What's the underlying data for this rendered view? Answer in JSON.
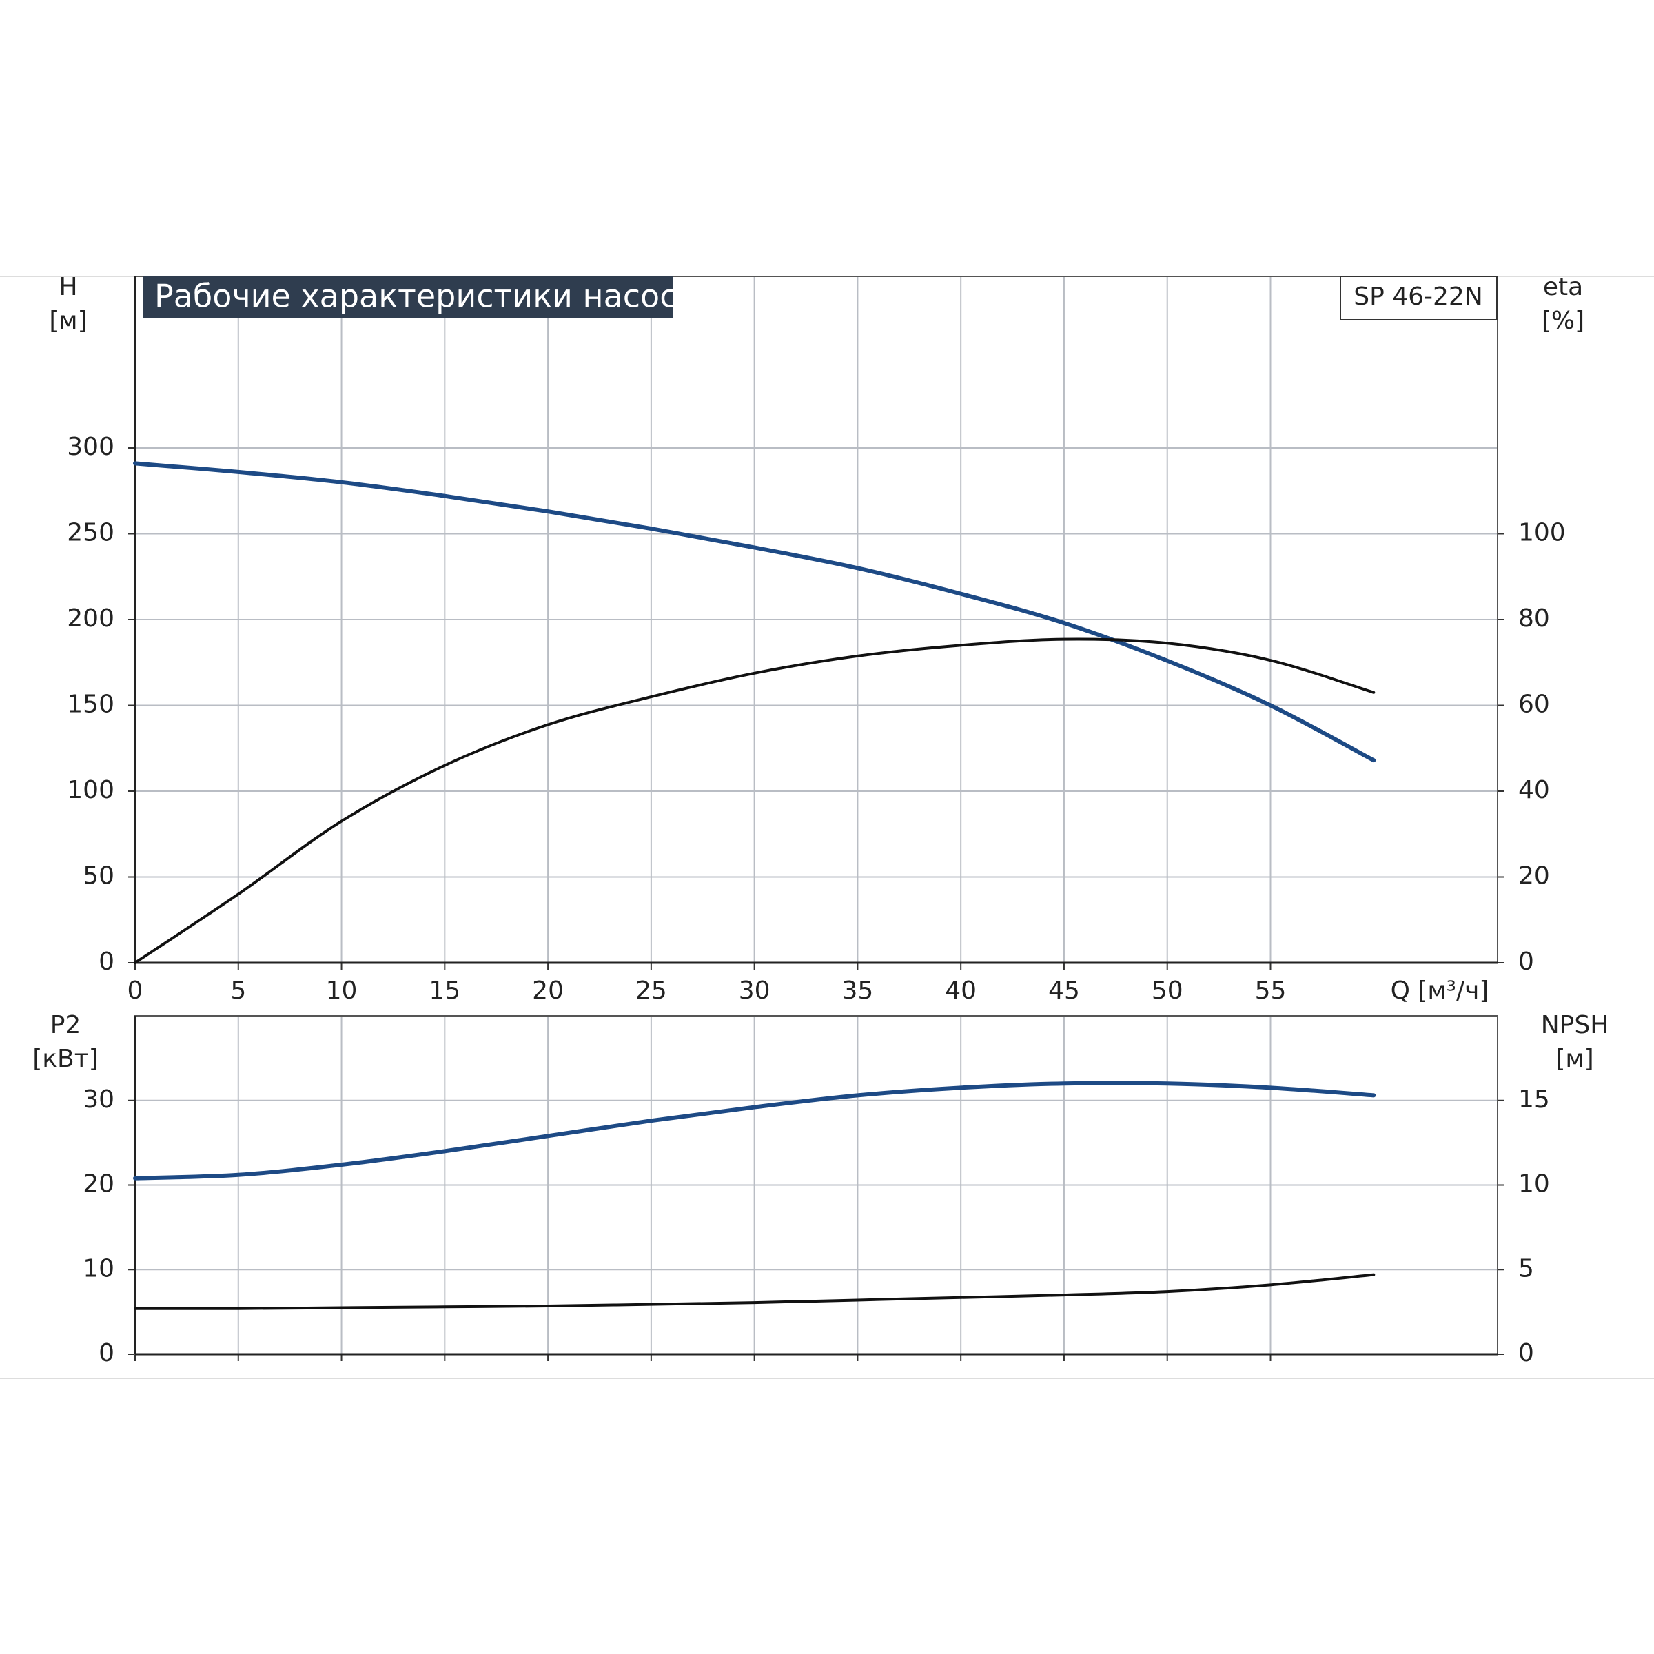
{
  "chart_data": [
    {
      "type": "line",
      "title": "Рабочие характеристики насоса",
      "model": "SP 46-22N",
      "ylabel": "H",
      "yunit": "[м]",
      "y2label": "eta",
      "y2unit": "[%]",
      "xlabel": "Q [м³/ч]",
      "xlim": [
        0,
        66
      ],
      "xticks": [
        0,
        5,
        10,
        15,
        20,
        25,
        30,
        35,
        40,
        45,
        50,
        55
      ],
      "ylim": [
        0,
        400
      ],
      "yticks": [
        0,
        50,
        100,
        150,
        200,
        250,
        300
      ],
      "y2lim": [
        0,
        160
      ],
      "y2ticks": [
        0,
        20,
        40,
        60,
        80,
        100
      ],
      "grid": true,
      "x": [
        0,
        5,
        10,
        15,
        20,
        25,
        30,
        35,
        40,
        45,
        50,
        55,
        60
      ],
      "series": [
        {
          "color": "#1d4a85",
          "values": [
            291,
            286,
            280,
            272,
            263,
            253,
            242,
            230,
            215,
            198,
            176,
            150,
            118
          ]
        },
        {
          "color": "#111111",
          "axis": "y2",
          "values": [
            0,
            16,
            33,
            46,
            55.5,
            62,
            67.5,
            71.5,
            74,
            75.4,
            74.5,
            70.5,
            63
          ]
        }
      ]
    },
    {
      "type": "line",
      "ylabel": "P2",
      "yunit": "[кВт]",
      "y2label": "NPSH",
      "y2unit": "[м]",
      "xlim": [
        0,
        66
      ],
      "ylim": [
        0,
        40
      ],
      "yticks": [
        0,
        10,
        20,
        30
      ],
      "y2lim": [
        0,
        20
      ],
      "y2ticks": [
        0,
        5,
        10,
        15
      ],
      "grid": true,
      "x": [
        0,
        5,
        10,
        15,
        20,
        25,
        30,
        35,
        40,
        45,
        50,
        55,
        60
      ],
      "series": [
        {
          "color": "#1d4a85",
          "values": [
            20.8,
            21.2,
            22.4,
            24,
            25.8,
            27.6,
            29.2,
            30.6,
            31.5,
            32,
            32,
            31.5,
            30.6
          ]
        },
        {
          "color": "#111111",
          "axis": "y2",
          "values": [
            2.7,
            2.7,
            2.75,
            2.8,
            2.85,
            2.95,
            3.05,
            3.2,
            3.35,
            3.5,
            3.7,
            4.1,
            4.7
          ]
        }
      ]
    }
  ]
}
